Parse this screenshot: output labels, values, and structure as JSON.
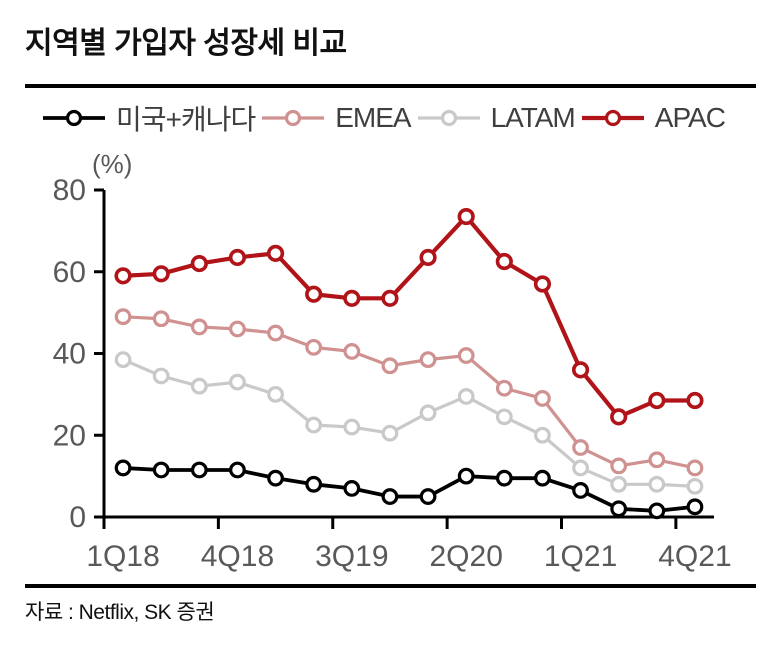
{
  "title": "지역별 가입자 성장세 비교",
  "source": "자료 : Netflix, SK 증권",
  "colors": {
    "us_canada": "#000000",
    "emea": "#d09191",
    "latam": "#c9c9c9",
    "apac": "#b01419",
    "axis": "#000000",
    "axis_label": "#595959",
    "legend_text": "#3f3f3f",
    "rule": "#000000"
  },
  "chart_data": {
    "type": "line",
    "title": "지역별 가입자 성장세 비교",
    "unit_label": "(%)",
    "ylabel": "",
    "xlabel": "",
    "ylim": [
      0,
      80
    ],
    "yticks": [
      0,
      20,
      40,
      60,
      80
    ],
    "grid": false,
    "legend_position": "top",
    "categories": [
      "1Q18",
      "2Q18",
      "3Q18",
      "4Q18",
      "1Q19",
      "2Q19",
      "3Q19",
      "4Q19",
      "1Q20",
      "2Q20",
      "3Q20",
      "4Q20",
      "1Q21",
      "2Q21",
      "3Q21",
      "4Q21"
    ],
    "x_labeled_indices": [
      0,
      3,
      6,
      9,
      12,
      15
    ],
    "x_tick_labels": [
      "1Q18",
      "4Q18",
      "3Q19",
      "2Q20",
      "1Q21",
      "4Q21"
    ],
    "series": [
      {
        "name": "미국+캐나다",
        "color": "#000000",
        "line_width": 3.8,
        "values": [
          12,
          11.5,
          11.5,
          11.5,
          9.5,
          8,
          7,
          5,
          5,
          10,
          9.5,
          9.5,
          6.5,
          2,
          1.5,
          2.5
        ]
      },
      {
        "name": "EMEA",
        "color": "#d09191",
        "line_width": 3.2,
        "values": [
          49,
          48.5,
          46.5,
          46,
          45,
          41.5,
          40.5,
          37,
          38.5,
          39.5,
          31.5,
          29,
          17,
          12.5,
          14,
          12
        ]
      },
      {
        "name": "LATAM",
        "color": "#c9c9c9",
        "line_width": 3.2,
        "values": [
          38.5,
          34.5,
          32,
          33,
          30,
          22.5,
          22,
          20.5,
          25.5,
          29.5,
          24.5,
          20,
          12,
          8,
          8,
          7.5
        ]
      },
      {
        "name": "APAC",
        "color": "#b01419",
        "line_width": 4.2,
        "values": [
          59,
          59.5,
          62,
          63.5,
          64.5,
          54.5,
          53.5,
          53.5,
          63.5,
          73.5,
          62.5,
          57,
          36,
          24.5,
          28.5,
          28.5
        ]
      }
    ]
  }
}
